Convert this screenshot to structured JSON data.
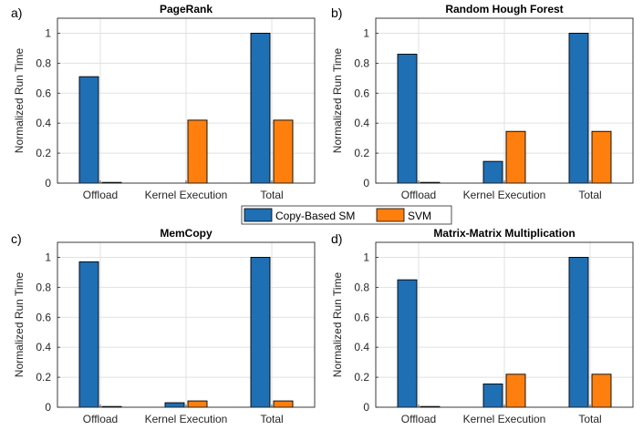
{
  "legend": {
    "items": [
      {
        "label": "Copy-Based SM",
        "color": "#1f6fb4"
      },
      {
        "label": "SVM",
        "color": "#ff7f0e"
      }
    ],
    "placement": "center, between rows"
  },
  "chart_data": [
    {
      "type": "bar",
      "panel_label": "a)",
      "title": "PageRank",
      "categories": [
        "Offload",
        "Kernel Execution",
        "Total"
      ],
      "series": [
        {
          "name": "Copy-Based SM",
          "color": "#1f6fb4",
          "values": [
            0.71,
            0,
            1.0
          ]
        },
        {
          "name": "SVM",
          "color": "#ff7f0e",
          "values": [
            0.005,
            0.42,
            0.42
          ]
        }
      ],
      "ylabel": "Normalized Run Time",
      "ylim": [
        0,
        1.1
      ],
      "yticks": [
        "0",
        "0.2",
        "0.4",
        "0.6",
        "0.8",
        "1"
      ],
      "grid": true
    },
    {
      "type": "bar",
      "panel_label": "b)",
      "title": "Random Hough Forest",
      "categories": [
        "Offload",
        "Kernel Execution",
        "Total"
      ],
      "series": [
        {
          "name": "Copy-Based SM",
          "color": "#1f6fb4",
          "values": [
            0.86,
            0.145,
            1.0
          ]
        },
        {
          "name": "SVM",
          "color": "#ff7f0e",
          "values": [
            0.005,
            0.345,
            0.345
          ]
        }
      ],
      "ylabel": "Normalized Run Time",
      "ylim": [
        0,
        1.1
      ],
      "yticks": [
        "0",
        "0.2",
        "0.4",
        "0.6",
        "0.8",
        "1"
      ],
      "grid": true
    },
    {
      "type": "bar",
      "panel_label": "c)",
      "title": "MemCopy",
      "categories": [
        "Offload",
        "Kernel Execution",
        "Total"
      ],
      "series": [
        {
          "name": "Copy-Based SM",
          "color": "#1f6fb4",
          "values": [
            0.97,
            0.03,
            1.0
          ]
        },
        {
          "name": "SVM",
          "color": "#ff7f0e",
          "values": [
            0.005,
            0.042,
            0.042
          ]
        }
      ],
      "ylabel": "Normalized Run Time",
      "ylim": [
        0,
        1.1
      ],
      "yticks": [
        "0",
        "0.2",
        "0.4",
        "0.6",
        "0.8",
        "1"
      ],
      "grid": true
    },
    {
      "type": "bar",
      "panel_label": "d)",
      "title": "Matrix-Matrix Multiplication",
      "categories": [
        "Offload",
        "Kernel Execution",
        "Total"
      ],
      "series": [
        {
          "name": "Copy-Based SM",
          "color": "#1f6fb4",
          "values": [
            0.85,
            0.155,
            1.0
          ]
        },
        {
          "name": "SVM",
          "color": "#ff7f0e",
          "values": [
            0.005,
            0.22,
            0.22
          ]
        }
      ],
      "ylabel": "Normalized Run Time",
      "ylim": [
        0,
        1.1
      ],
      "yticks": [
        "0",
        "0.2",
        "0.4",
        "0.6",
        "0.8",
        "1"
      ],
      "grid": true
    }
  ]
}
